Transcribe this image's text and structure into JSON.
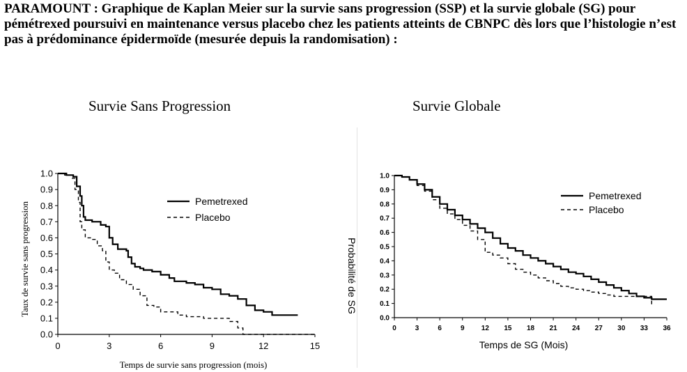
{
  "caption": "PARAMOUNT : Graphique de Kaplan Meier sur la survie sans progression (SSP) et la survie globale (SG) pour pémétrexed poursuivi en maintenance versus placebo chez les patients atteints de CBNPC dès lors que l’histologie n’est pas à prédominance épidermoïde (mesurée depuis la randomisation) :",
  "chart_data": [
    {
      "type": "line",
      "title": "Survie Sans Progression",
      "xlabel": "Temps de survie sans progression (mois)",
      "ylabel": "Taux de survie sans progression",
      "xlim": [
        0,
        15
      ],
      "ylim": [
        0,
        1
      ],
      "xticks": [
        "0",
        "3",
        "6",
        "9",
        "12",
        "15"
      ],
      "yticks": [
        "0.0",
        "0.1",
        "0.2",
        "0.3",
        "0.4",
        "0.5",
        "0.6",
        "0.7",
        "0.8",
        "0.9",
        "1.0"
      ],
      "legend": "upper-right",
      "grid": false,
      "series": [
        {
          "name": "Pemetrexed",
          "style": "solid",
          "color": "#000000",
          "points": [
            [
              0,
              1.0
            ],
            [
              0.5,
              0.99
            ],
            [
              0.9,
              0.98
            ],
            [
              1.1,
              0.92
            ],
            [
              1.3,
              0.86
            ],
            [
              1.4,
              0.8
            ],
            [
              1.5,
              0.73
            ],
            [
              1.6,
              0.71
            ],
            [
              2.0,
              0.7
            ],
            [
              2.5,
              0.68
            ],
            [
              2.8,
              0.67
            ],
            [
              3.0,
              0.6
            ],
            [
              3.2,
              0.56
            ],
            [
              3.5,
              0.53
            ],
            [
              4.0,
              0.52
            ],
            [
              4.1,
              0.48
            ],
            [
              4.3,
              0.44
            ],
            [
              4.5,
              0.42
            ],
            [
              4.8,
              0.41
            ],
            [
              5.0,
              0.4
            ],
            [
              5.5,
              0.39
            ],
            [
              6.0,
              0.37
            ],
            [
              6.5,
              0.35
            ],
            [
              6.8,
              0.33
            ],
            [
              7.5,
              0.32
            ],
            [
              8.0,
              0.31
            ],
            [
              8.5,
              0.29
            ],
            [
              9.0,
              0.28
            ],
            [
              9.5,
              0.25
            ],
            [
              10.0,
              0.24
            ],
            [
              10.5,
              0.22
            ],
            [
              11.0,
              0.18
            ],
            [
              11.5,
              0.15
            ],
            [
              12.0,
              0.14
            ],
            [
              12.5,
              0.12
            ],
            [
              13.5,
              0.12
            ],
            [
              14.0,
              0.12
            ]
          ]
        },
        {
          "name": "Placebo",
          "style": "dashed",
          "color": "#000000",
          "points": [
            [
              0,
              1.0
            ],
            [
              0.4,
              0.99
            ],
            [
              0.8,
              0.97
            ],
            [
              1.0,
              0.9
            ],
            [
              1.2,
              0.82
            ],
            [
              1.3,
              0.7
            ],
            [
              1.4,
              0.65
            ],
            [
              1.6,
              0.6
            ],
            [
              2.0,
              0.59
            ],
            [
              2.3,
              0.55
            ],
            [
              2.6,
              0.52
            ],
            [
              2.8,
              0.45
            ],
            [
              3.0,
              0.4
            ],
            [
              3.3,
              0.38
            ],
            [
              3.6,
              0.34
            ],
            [
              4.0,
              0.31
            ],
            [
              4.4,
              0.28
            ],
            [
              4.8,
              0.24
            ],
            [
              5.2,
              0.18
            ],
            [
              5.6,
              0.17
            ],
            [
              6.0,
              0.14
            ],
            [
              6.7,
              0.14
            ],
            [
              7.0,
              0.12
            ],
            [
              7.5,
              0.11
            ],
            [
              8.3,
              0.11
            ],
            [
              8.5,
              0.1
            ],
            [
              9.5,
              0.1
            ],
            [
              10.0,
              0.08
            ],
            [
              10.5,
              0.04
            ],
            [
              10.8,
              0.0
            ],
            [
              15.0,
              0.0
            ]
          ]
        }
      ]
    },
    {
      "type": "line",
      "title": "Survie Globale",
      "xlabel": "Temps de SG (Mois)",
      "ylabel": "Probabilité de SG",
      "xlim": [
        0,
        36
      ],
      "ylim": [
        0,
        1
      ],
      "xticks": [
        "0",
        "3",
        "6",
        "9",
        "12",
        "15",
        "18",
        "21",
        "24",
        "27",
        "30",
        "33",
        "36"
      ],
      "yticks": [
        "0.0",
        "0.1",
        "0.2",
        "0.3",
        "0.4",
        "0.5",
        "0.6",
        "0.7",
        "0.8",
        "0.9",
        "1.0"
      ],
      "legend": "upper-right",
      "grid": false,
      "series": [
        {
          "name": "Pemetrexed",
          "style": "solid",
          "color": "#000000",
          "points": [
            [
              0,
              1.0
            ],
            [
              1,
              0.99
            ],
            [
              2,
              0.97
            ],
            [
              3,
              0.94
            ],
            [
              4,
              0.9
            ],
            [
              5,
              0.85
            ],
            [
              6,
              0.8
            ],
            [
              7,
              0.76
            ],
            [
              8,
              0.72
            ],
            [
              9,
              0.69
            ],
            [
              10,
              0.66
            ],
            [
              11,
              0.63
            ],
            [
              12,
              0.6
            ],
            [
              13,
              0.56
            ],
            [
              14,
              0.52
            ],
            [
              15,
              0.49
            ],
            [
              16,
              0.47
            ],
            [
              17,
              0.44
            ],
            [
              18,
              0.42
            ],
            [
              19,
              0.4
            ],
            [
              20,
              0.38
            ],
            [
              21,
              0.36
            ],
            [
              22,
              0.34
            ],
            [
              23,
              0.32
            ],
            [
              24,
              0.31
            ],
            [
              25,
              0.29
            ],
            [
              26,
              0.27
            ],
            [
              27,
              0.25
            ],
            [
              28,
              0.23
            ],
            [
              29,
              0.21
            ],
            [
              30,
              0.19
            ],
            [
              31,
              0.17
            ],
            [
              32,
              0.15
            ],
            [
              33,
              0.14
            ],
            [
              34,
              0.13
            ],
            [
              36,
              0.13
            ]
          ]
        },
        {
          "name": "Placebo",
          "style": "dashed",
          "color": "#000000",
          "points": [
            [
              0,
              1.0
            ],
            [
              1,
              0.99
            ],
            [
              2,
              0.97
            ],
            [
              3,
              0.93
            ],
            [
              4,
              0.89
            ],
            [
              5,
              0.83
            ],
            [
              6,
              0.77
            ],
            [
              7,
              0.73
            ],
            [
              8,
              0.69
            ],
            [
              9,
              0.65
            ],
            [
              10,
              0.61
            ],
            [
              11,
              0.55
            ],
            [
              12,
              0.46
            ],
            [
              13,
              0.44
            ],
            [
              14,
              0.42
            ],
            [
              15,
              0.38
            ],
            [
              16,
              0.34
            ],
            [
              17,
              0.32
            ],
            [
              18,
              0.3
            ],
            [
              19,
              0.28
            ],
            [
              20,
              0.26
            ],
            [
              21,
              0.24
            ],
            [
              22,
              0.22
            ],
            [
              23,
              0.21
            ],
            [
              24,
              0.2
            ],
            [
              25,
              0.19
            ],
            [
              26,
              0.18
            ],
            [
              27,
              0.17
            ],
            [
              28,
              0.16
            ],
            [
              29,
              0.15
            ],
            [
              30,
              0.15
            ],
            [
              31,
              0.15
            ],
            [
              32,
              0.15
            ],
            [
              33,
              0.15
            ],
            [
              34,
              0.08
            ]
          ]
        }
      ]
    }
  ]
}
